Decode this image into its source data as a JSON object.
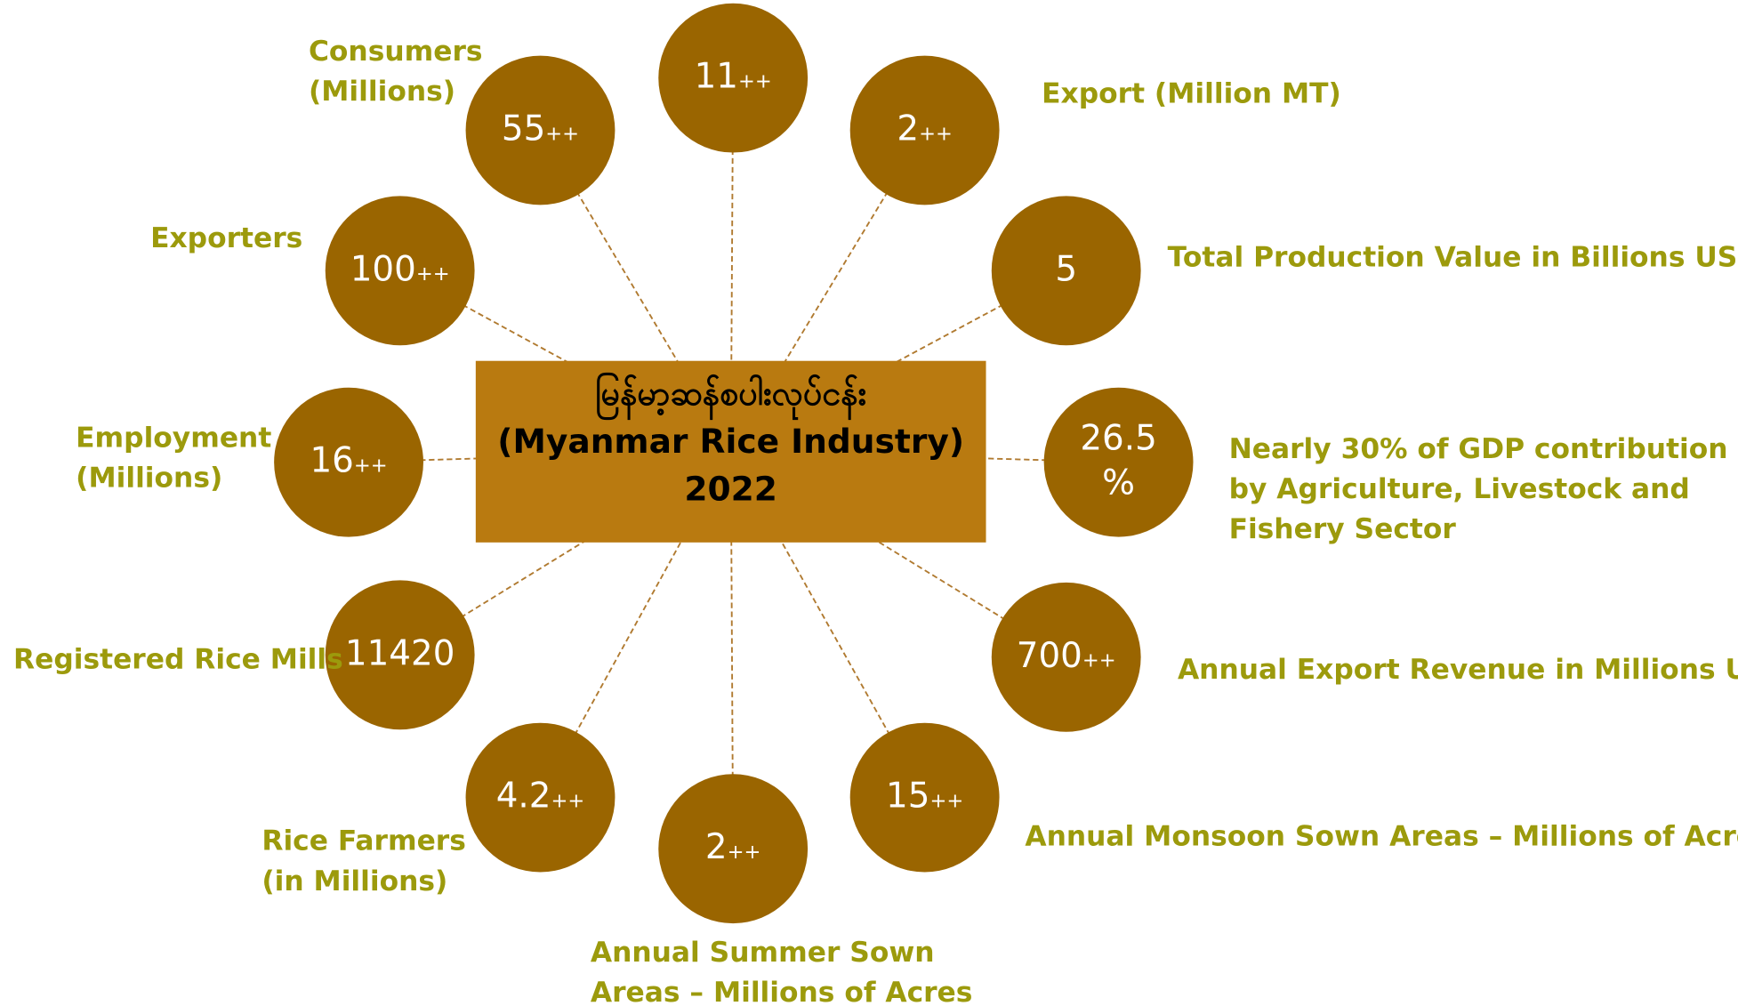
{
  "center": {
    "lines": [
      "မြန်မာ့ဆန်စပါးလုပ်ငန်း",
      "(Myanmar Rice Industry)",
      "2022"
    ]
  },
  "nodes": [
    {
      "value": [
        "11"
      ],
      "suffix": "++",
      "label": []
    },
    {
      "value": [
        "2"
      ],
      "suffix": "++",
      "label": [
        "Export (Million MT)"
      ]
    },
    {
      "value": [
        "5"
      ],
      "label": [
        "Total Production Value in Billions USD"
      ]
    },
    {
      "value": [
        "26.5",
        "%"
      ],
      "label": [
        "Nearly 30% of GDP contribution",
        "by Agriculture, Livestock and",
        "Fishery Sector"
      ]
    },
    {
      "value": [
        "700"
      ],
      "suffix": "++",
      "label": [
        "Annual Export Revenue in Millions USD"
      ]
    },
    {
      "value": [
        "15"
      ],
      "suffix": "++",
      "label": [
        "Annual Monsoon Sown Areas – Millions of Acres"
      ]
    },
    {
      "value": [
        "2"
      ],
      "suffix": "++",
      "label": [
        "Annual Summer Sown",
        "Areas – Millions of Acres"
      ]
    },
    {
      "value": [
        "4.2"
      ],
      "suffix": "++",
      "label": [
        "Rice Farmers",
        "(in Millions)"
      ]
    },
    {
      "value": [
        "11420"
      ],
      "label": [
        "Registered Rice Mills"
      ]
    },
    {
      "value": [
        "16"
      ],
      "suffix": "++",
      "label": [
        "Employment",
        "(Millions)"
      ]
    },
    {
      "value": [
        "100"
      ],
      "suffix": "++",
      "label": [
        "Exporters"
      ]
    },
    {
      "value": [
        "55"
      ],
      "suffix": "++",
      "label": [
        "Consumers",
        "(Millions)"
      ]
    }
  ]
}
